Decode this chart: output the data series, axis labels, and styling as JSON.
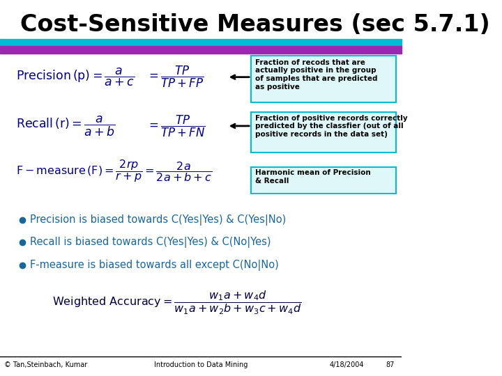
{
  "title": "Cost-Sensitive Measures (sec 5.7.1)",
  "title_color": "#000000",
  "title_fontsize": 24,
  "title_bold": true,
  "bg_color": "#ffffff",
  "header_bar_color1": "#00bcd4",
  "header_bar_color2": "#9c27b0",
  "formula_color": "#000080",
  "annotation_box_edge": "#00bcd4",
  "annotation_box_face": "#e0f7fa",
  "annotation_text_color": "#000000",
  "bullet_color": "#1a6699",
  "bullet_text_color": "#1a6699",
  "footer_text_color": "#000000",
  "precision_annotation": "Fraction of recods that are\nactually positive in the group\nof samples that are predicted\nas positive",
  "recall_annotation": "Fraction of positive records correctly\npredicted by the classfier (out of all\npositive records in the data set)",
  "fmeasure_annotation": "Harmonic mean of Precision\n& Recall",
  "bullet1": "Precision is biased towards C(Yes|Yes) & C(Yes|No)",
  "bullet2": "Recall is biased towards C(Yes|Yes) & C(No|Yes)",
  "bullet3": "F-measure is biased towards all except C(No|No)",
  "footer_left": "© Tan,Steinbach, Kumar",
  "footer_center": "Introduction to Data Mining",
  "footer_right": "4/18/2004",
  "footer_page": "87"
}
